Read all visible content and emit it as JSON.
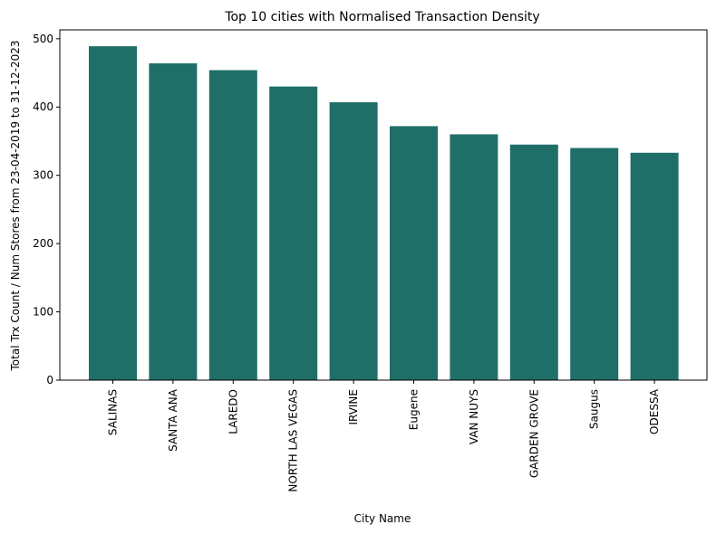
{
  "chart_data": {
    "type": "bar",
    "title": "Top 10 cities with Normalised Transaction Density",
    "xlabel": "City Name",
    "ylabel": "Total Trx Count / Num Stores from 23-04-2019 to 31-12-2023",
    "categories": [
      "SALINAS",
      "SANTA ANA",
      "LAREDO",
      "NORTH LAS VEGAS",
      "IRVINE",
      "Eugene",
      "VAN NUYS",
      "GARDEN GROVE",
      "Saugus",
      "ODESSA"
    ],
    "values": [
      489,
      464,
      454,
      430,
      407,
      372,
      360,
      345,
      340,
      333
    ],
    "ylim": [
      0,
      513
    ],
    "yticks": [
      0,
      100,
      200,
      300,
      400,
      500
    ],
    "bar_color": "#1f6f68",
    "grid": false,
    "legend": "none"
  }
}
